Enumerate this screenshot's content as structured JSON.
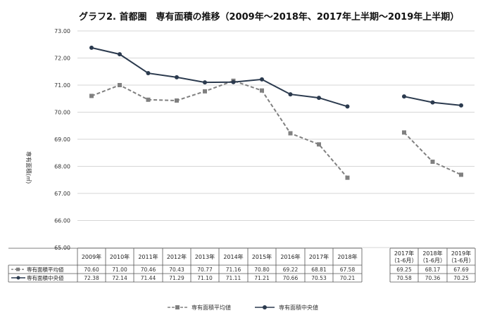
{
  "chart_data": {
    "type": "line",
    "title": "グラフ2. 首都圏　専有面積の推移（2009年～2018年、2017年上半期～2019年上半期）",
    "ylabel": "専有面積(㎡)",
    "ylim": [
      65,
      73
    ],
    "yticks": [
      "65.00",
      "66.00",
      "67.00",
      "68.00",
      "69.00",
      "70.00",
      "71.00",
      "72.00",
      "73.00"
    ],
    "grid": true,
    "legend_position": "bottom",
    "categories": [
      "2009年",
      "2010年",
      "2011年",
      "2012年",
      "2013年",
      "2014年",
      "2015年",
      "2016年",
      "2017年",
      "2018年",
      "2017年 （1-6月）",
      "2018年 （1-6月）",
      "2019年 （1-6月）"
    ],
    "series": [
      {
        "name": "専有面積平均値",
        "style": "dashed-square",
        "color": "#808080",
        "values": [
          70.6,
          71.0,
          70.46,
          70.43,
          70.77,
          71.16,
          70.8,
          69.22,
          68.81,
          67.58,
          69.25,
          68.17,
          67.69
        ],
        "labels": [
          "70.60",
          "71.00",
          "70.46",
          "70.43",
          "70.77",
          "71.16",
          "70.80",
          "69.22",
          "68.81",
          "67.58",
          "69.25",
          "68.17",
          "67.69"
        ]
      },
      {
        "name": "専有面積中央値",
        "style": "solid-circle",
        "color": "#2b3a4e",
        "values": [
          72.38,
          72.14,
          71.44,
          71.29,
          71.1,
          71.11,
          71.21,
          70.66,
          70.53,
          70.21,
          70.58,
          70.36,
          70.25
        ],
        "labels": [
          "72.38",
          "72.14",
          "71.44",
          "71.29",
          "71.10",
          "71.11",
          "71.21",
          "70.66",
          "70.53",
          "70.21",
          "70.58",
          "70.36",
          "70.25"
        ]
      }
    ]
  }
}
